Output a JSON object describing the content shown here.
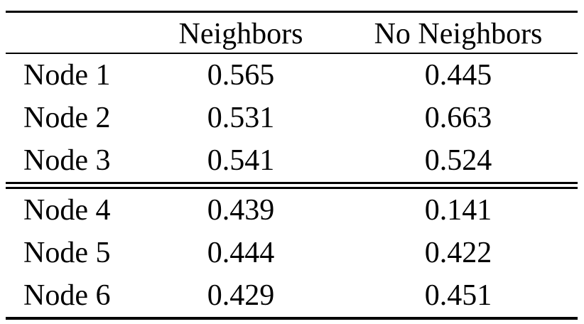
{
  "colors": {
    "background": "#ffffff",
    "text": "#000000",
    "rule": "#000000"
  },
  "table": {
    "columns": [
      "",
      "Neighbors",
      "No Neighbors"
    ],
    "groups": [
      {
        "rows": [
          {
            "label": "Node 1",
            "neighbors": "0.565",
            "no_neighbors": "0.445"
          },
          {
            "label": "Node 2",
            "neighbors": "0.531",
            "no_neighbors": "0.663"
          },
          {
            "label": "Node 3",
            "neighbors": "0.541",
            "no_neighbors": "0.524"
          }
        ]
      },
      {
        "rows": [
          {
            "label": "Node 4",
            "neighbors": "0.439",
            "no_neighbors": "0.141"
          },
          {
            "label": "Node 5",
            "neighbors": "0.444",
            "no_neighbors": "0.422"
          },
          {
            "label": "Node 6",
            "neighbors": "0.429",
            "no_neighbors": "0.451"
          }
        ]
      }
    ]
  },
  "chart_data": {
    "type": "table",
    "title": "",
    "categories": [
      "Node 1",
      "Node 2",
      "Node 3",
      "Node 4",
      "Node 5",
      "Node 6"
    ],
    "series": [
      {
        "name": "Neighbors",
        "values": [
          0.565,
          0.531,
          0.541,
          0.439,
          0.444,
          0.429
        ]
      },
      {
        "name": "No Neighbors",
        "values": [
          0.445,
          0.663,
          0.524,
          0.141,
          0.422,
          0.451
        ]
      }
    ]
  }
}
